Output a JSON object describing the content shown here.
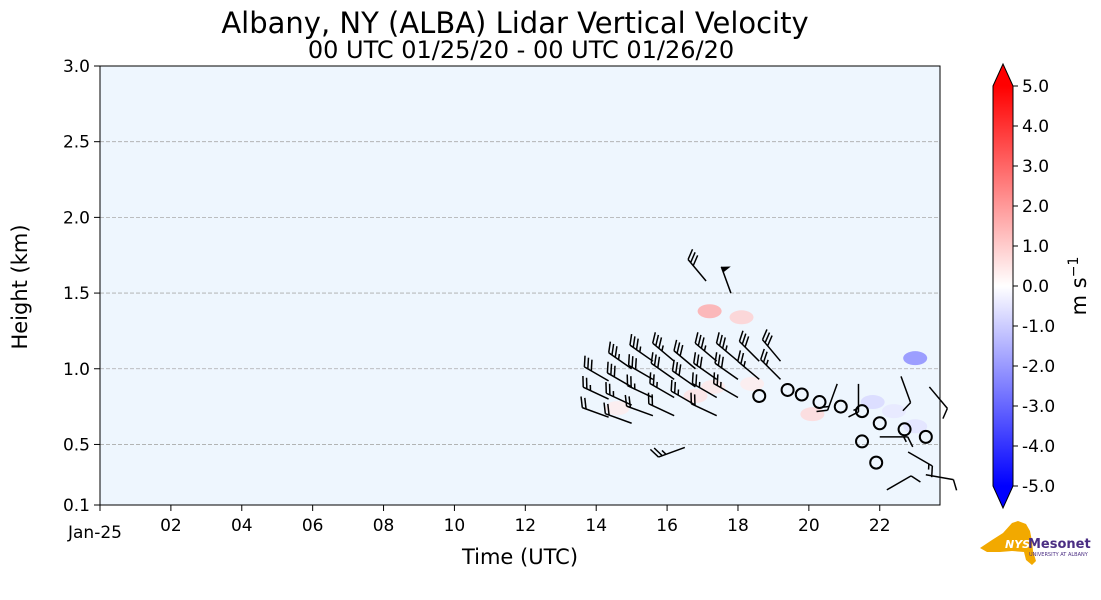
{
  "chart_data": {
    "type": "heatmap",
    "title": "Albany, NY (ALBA) Lidar Vertical Velocity",
    "subtitle": "00 UTC 01/25/20 - 00 UTC 01/26/20",
    "xlabel": "Time (UTC)",
    "ylabel": "Height (km)",
    "xlim": [
      0,
      23.7
    ],
    "ylim": [
      0.1,
      3.0
    ],
    "x_ticks": [
      0,
      2,
      4,
      6,
      8,
      10,
      12,
      14,
      16,
      18,
      20,
      22
    ],
    "x_tick_labels": [
      "Jan-25",
      "02",
      "04",
      "06",
      "08",
      "10",
      "12",
      "14",
      "16",
      "18",
      "20",
      "22"
    ],
    "y_ticks": [
      0.1,
      0.5,
      1.0,
      1.5,
      2.0,
      2.5,
      3.0
    ],
    "y_tick_labels": [
      "0.1",
      "0.5",
      "1.0",
      "1.5",
      "2.0",
      "2.5",
      "3.0"
    ],
    "grid": "horizontal dashed",
    "background_color": "#eef6fe",
    "colorbar": {
      "label": "m s",
      "label_superscript": "−1",
      "min": -5.0,
      "max": 5.0,
      "colors": {
        "neg": "#0000ff",
        "zero": "#ffffff",
        "pos": "#ff0000"
      },
      "tick_values": [
        5,
        4,
        3,
        2,
        1,
        0,
        -1,
        -2,
        -3,
        -4,
        -5
      ],
      "tick_labels": [
        "5.0",
        "4.0",
        "3.0",
        "2.0",
        "1.0",
        "0.0",
        "-1.0",
        "-2.0",
        "-3.0",
        "-4.0",
        "-5.0"
      ]
    },
    "velocity_patches": [
      {
        "x": 16.8,
        "y": 0.82,
        "v": 0.6
      },
      {
        "x": 17.3,
        "y": 0.88,
        "v": 0.5
      },
      {
        "x": 18.4,
        "y": 0.9,
        "v": 0.4
      },
      {
        "x": 20.1,
        "y": 0.7,
        "v": 0.8
      },
      {
        "x": 21.8,
        "y": 0.78,
        "v": -0.8
      },
      {
        "x": 22.4,
        "y": 0.72,
        "v": -0.5
      },
      {
        "x": 23.0,
        "y": 0.62,
        "v": -0.6
      },
      {
        "x": 17.2,
        "y": 1.38,
        "v": 1.8
      },
      {
        "x": 18.1,
        "y": 1.34,
        "v": 1.0
      },
      {
        "x": 14.6,
        "y": 0.74,
        "v": 0.4
      },
      {
        "x": 23.0,
        "y": 1.07,
        "v": -2.5
      }
    ],
    "wind_barbs": [
      {
        "x": 14.35,
        "y": 0.92,
        "dir": 300,
        "speed": 30
      },
      {
        "x": 14.35,
        "y": 0.8,
        "dir": 295,
        "speed": 25
      },
      {
        "x": 14.35,
        "y": 0.68,
        "dir": 290,
        "speed": 20
      },
      {
        "x": 15.0,
        "y": 1.0,
        "dir": 305,
        "speed": 35
      },
      {
        "x": 15.0,
        "y": 0.88,
        "dir": 300,
        "speed": 30
      },
      {
        "x": 15.0,
        "y": 0.76,
        "dir": 295,
        "speed": 25
      },
      {
        "x": 15.0,
        "y": 0.64,
        "dir": 290,
        "speed": 20
      },
      {
        "x": 15.6,
        "y": 1.05,
        "dir": 305,
        "speed": 35
      },
      {
        "x": 15.6,
        "y": 0.93,
        "dir": 300,
        "speed": 30
      },
      {
        "x": 15.6,
        "y": 0.81,
        "dir": 295,
        "speed": 25
      },
      {
        "x": 15.6,
        "y": 0.69,
        "dir": 290,
        "speed": 20
      },
      {
        "x": 16.2,
        "y": 1.05,
        "dir": 310,
        "speed": 35
      },
      {
        "x": 16.2,
        "y": 0.93,
        "dir": 305,
        "speed": 30
      },
      {
        "x": 16.2,
        "y": 0.81,
        "dir": 300,
        "speed": 25
      },
      {
        "x": 16.2,
        "y": 0.69,
        "dir": 295,
        "speed": 20
      },
      {
        "x": 16.8,
        "y": 1.0,
        "dir": 310,
        "speed": 30
      },
      {
        "x": 16.8,
        "y": 0.88,
        "dir": 305,
        "speed": 30
      },
      {
        "x": 16.8,
        "y": 0.76,
        "dir": 300,
        "speed": 25
      },
      {
        "x": 16.5,
        "y": 0.48,
        "dir": 250,
        "speed": 25
      },
      {
        "x": 17.4,
        "y": 1.05,
        "dir": 310,
        "speed": 35
      },
      {
        "x": 17.4,
        "y": 0.93,
        "dir": 305,
        "speed": 30
      },
      {
        "x": 17.4,
        "y": 0.81,
        "dir": 300,
        "speed": 25
      },
      {
        "x": 17.4,
        "y": 0.69,
        "dir": 295,
        "speed": 20
      },
      {
        "x": 18.0,
        "y": 1.05,
        "dir": 310,
        "speed": 35
      },
      {
        "x": 18.0,
        "y": 0.93,
        "dir": 305,
        "speed": 30
      },
      {
        "x": 18.0,
        "y": 0.81,
        "dir": 300,
        "speed": 25
      },
      {
        "x": 18.6,
        "y": 1.05,
        "dir": 315,
        "speed": 30
      },
      {
        "x": 18.6,
        "y": 0.93,
        "dir": 310,
        "speed": 25
      },
      {
        "x": 19.2,
        "y": 1.05,
        "dir": 320,
        "speed": 30
      },
      {
        "x": 19.2,
        "y": 0.93,
        "dir": 315,
        "speed": 25
      },
      {
        "x": 17.1,
        "y": 1.58,
        "dir": 320,
        "speed": 30
      },
      {
        "x": 17.8,
        "y": 1.5,
        "dir": 340,
        "speed": 50
      },
      {
        "x": 20.8,
        "y": 0.9,
        "dir": 200,
        "speed": 15
      },
      {
        "x": 21.4,
        "y": 0.9,
        "dir": 180,
        "speed": 15
      },
      {
        "x": 22.6,
        "y": 0.95,
        "dir": 160,
        "speed": 10
      },
      {
        "x": 23.4,
        "y": 0.88,
        "dir": 140,
        "speed": 10
      },
      {
        "x": 22.0,
        "y": 0.55,
        "dir": 90,
        "speed": 15
      },
      {
        "x": 22.8,
        "y": 0.45,
        "dir": 120,
        "speed": 15
      },
      {
        "x": 23.3,
        "y": 0.3,
        "dir": 100,
        "speed": 10
      },
      {
        "x": 22.2,
        "y": 0.2,
        "dir": 60,
        "speed": 10
      }
    ],
    "circle_markers": [
      {
        "x": 19.4,
        "y": 0.86
      },
      {
        "x": 19.8,
        "y": 0.83
      },
      {
        "x": 20.3,
        "y": 0.78
      },
      {
        "x": 20.9,
        "y": 0.75
      },
      {
        "x": 21.5,
        "y": 0.72
      },
      {
        "x": 22.0,
        "y": 0.64
      },
      {
        "x": 21.5,
        "y": 0.52
      },
      {
        "x": 22.7,
        "y": 0.6
      },
      {
        "x": 23.3,
        "y": 0.55
      },
      {
        "x": 21.9,
        "y": 0.38
      },
      {
        "x": 18.6,
        "y": 0.82
      }
    ]
  },
  "logo": {
    "text": "NYS Mesonet",
    "subtext": "UNIVERSITY AT ALBANY",
    "colors": {
      "state": "#f2a900",
      "text": "#4b2e83"
    }
  }
}
